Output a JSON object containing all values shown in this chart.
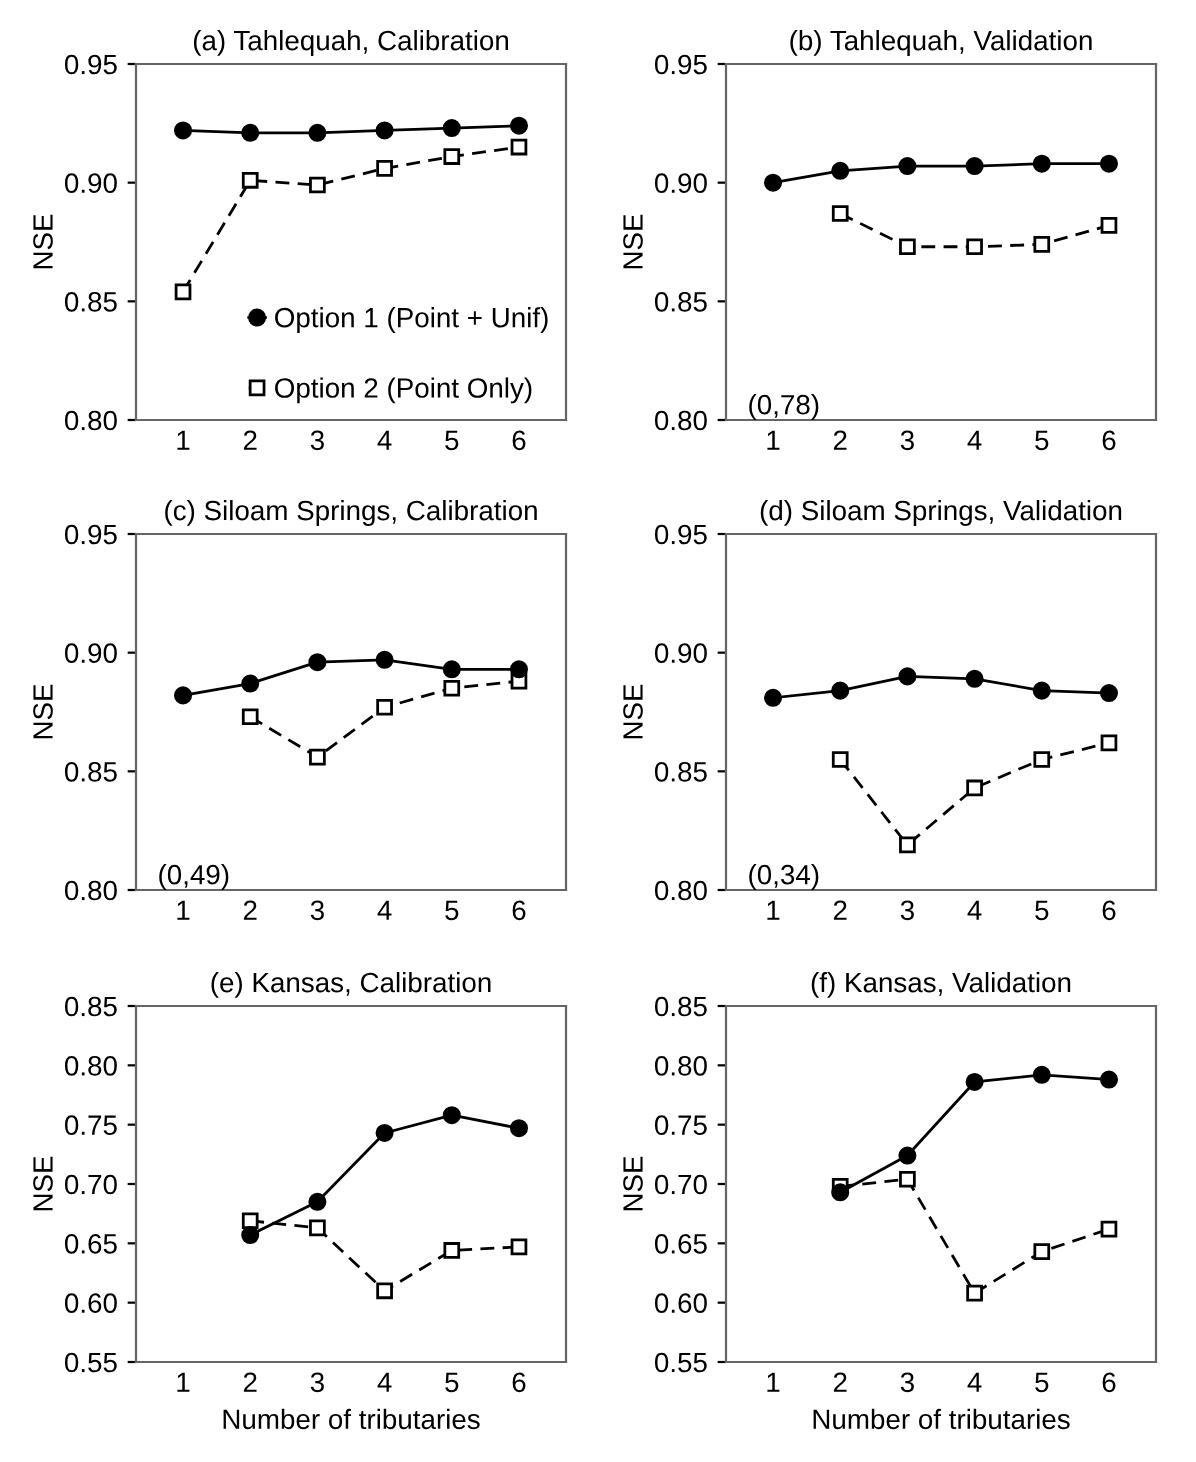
{
  "chart_data": [
    {
      "type": "line",
      "title": "(a) Tahlequah, Calibration",
      "ylabel": "NSE",
      "x": [
        1,
        2,
        3,
        4,
        5,
        6
      ],
      "xlim": [
        0.3,
        6.7
      ],
      "xticks": [
        1,
        2,
        3,
        4,
        5,
        6
      ],
      "ylim": [
        0.8,
        0.95
      ],
      "yticks": [
        {
          "value": 0.8,
          "label": "0.80"
        },
        {
          "value": 0.85,
          "label": "0.85"
        },
        {
          "value": 0.9,
          "label": "0.90"
        },
        {
          "value": 0.95,
          "label": "0.95"
        }
      ],
      "legend": "bottom right",
      "grid": false,
      "series": [
        {
          "name": "Option 1 (Point + Unif)",
          "color": "#000000",
          "marker": "circle",
          "line_style": "solid",
          "values": [
            0.922,
            0.921,
            0.921,
            0.922,
            0.923,
            0.924
          ]
        },
        {
          "name": "Option 2 (Point Only)",
          "color": "#000000",
          "marker": "square",
          "line_style": "dashed",
          "values": [
            0.854,
            0.901,
            0.899,
            0.906,
            0.911,
            0.915
          ]
        }
      ]
    },
    {
      "type": "line",
      "title": "(b) Tahlequah, Validation",
      "ylabel": "NSE",
      "x": [
        1,
        2,
        3,
        4,
        5,
        6
      ],
      "xlim": [
        0.3,
        6.7
      ],
      "xticks": [
        1,
        2,
        3,
        4,
        5,
        6
      ],
      "ylim": [
        0.8,
        0.95
      ],
      "yticks": [
        {
          "value": 0.8,
          "label": "0.80"
        },
        {
          "value": 0.85,
          "label": "0.85"
        },
        {
          "value": 0.9,
          "label": "0.90"
        },
        {
          "value": 0.95,
          "label": "0.95"
        }
      ],
      "grid": false,
      "annotations": [
        "(0,78)"
      ],
      "series": [
        {
          "color": "#000000",
          "marker": "circle",
          "line_style": "solid",
          "values": [
            0.9,
            0.905,
            0.907,
            0.907,
            0.908,
            0.908
          ]
        },
        {
          "color": "#000000",
          "marker": "square",
          "line_style": "dashed",
          "values": [
            null,
            0.887,
            0.873,
            0.873,
            0.874,
            0.882
          ]
        }
      ]
    },
    {
      "type": "line",
      "title": "(c) Siloam Springs, Calibration",
      "ylabel": "NSE",
      "x": [
        1,
        2,
        3,
        4,
        5,
        6
      ],
      "xlim": [
        0.3,
        6.7
      ],
      "xticks": [
        1,
        2,
        3,
        4,
        5,
        6
      ],
      "ylim": [
        0.8,
        0.95
      ],
      "yticks": [
        {
          "value": 0.8,
          "label": "0.80"
        },
        {
          "value": 0.85,
          "label": "0.85"
        },
        {
          "value": 0.9,
          "label": "0.90"
        },
        {
          "value": 0.95,
          "label": "0.95"
        }
      ],
      "grid": false,
      "annotations": [
        "(0,49)"
      ],
      "series": [
        {
          "color": "#000000",
          "marker": "circle",
          "line_style": "solid",
          "values": [
            0.882,
            0.887,
            0.896,
            0.897,
            0.893,
            0.893
          ]
        },
        {
          "color": "#000000",
          "marker": "square",
          "line_style": "dashed",
          "values": [
            null,
            0.873,
            0.856,
            0.877,
            0.885,
            0.888
          ]
        }
      ]
    },
    {
      "type": "line",
      "title": "(d) Siloam Springs, Validation",
      "ylabel": "NSE",
      "x": [
        1,
        2,
        3,
        4,
        5,
        6
      ],
      "xlim": [
        0.3,
        6.7
      ],
      "xticks": [
        1,
        2,
        3,
        4,
        5,
        6
      ],
      "ylim": [
        0.8,
        0.95
      ],
      "yticks": [
        {
          "value": 0.8,
          "label": "0.80"
        },
        {
          "value": 0.85,
          "label": "0.85"
        },
        {
          "value": 0.9,
          "label": "0.90"
        },
        {
          "value": 0.95,
          "label": "0.95"
        }
      ],
      "grid": false,
      "annotations": [
        "(0,34)"
      ],
      "series": [
        {
          "color": "#000000",
          "marker": "circle",
          "line_style": "solid",
          "values": [
            0.881,
            0.884,
            0.89,
            0.889,
            0.884,
            0.883
          ]
        },
        {
          "color": "#000000",
          "marker": "square",
          "line_style": "dashed",
          "values": [
            null,
            0.855,
            0.819,
            0.843,
            0.855,
            0.862
          ]
        }
      ]
    },
    {
      "type": "line",
      "title": "(e) Kansas, Calibration",
      "ylabel": "NSE",
      "xlabel": "Number of tributaries",
      "xlim": [
        0.3,
        6.7
      ],
      "xticks": [
        1,
        2,
        3,
        4,
        5,
        6
      ],
      "ylim": [
        0.55,
        0.85
      ],
      "yticks": [
        {
          "value": 0.55,
          "label": "0.55"
        },
        {
          "value": 0.6,
          "label": "0.60"
        },
        {
          "value": 0.65,
          "label": "0.65"
        },
        {
          "value": 0.7,
          "label": "0.70"
        },
        {
          "value": 0.75,
          "label": "0.75"
        },
        {
          "value": 0.8,
          "label": "0.80"
        },
        {
          "value": 0.85,
          "label": "0.85"
        }
      ],
      "grid": false,
      "series": [
        {
          "color": "#000000",
          "marker": "circle",
          "line_style": "solid",
          "x": [
            2,
            3,
            4,
            5,
            6
          ],
          "values": [
            0.657,
            0.685,
            0.743,
            0.758,
            0.747
          ]
        },
        {
          "color": "#000000",
          "marker": "square",
          "line_style": "dashed",
          "x": [
            2,
            3,
            4,
            5,
            6
          ],
          "values": [
            0.669,
            0.663,
            0.61,
            0.644,
            0.647
          ]
        }
      ]
    },
    {
      "type": "line",
      "title": "(f) Kansas, Validation",
      "ylabel": "NSE",
      "xlabel": "Number of tributaries",
      "xlim": [
        0.3,
        6.7
      ],
      "xticks": [
        1,
        2,
        3,
        4,
        5,
        6
      ],
      "ylim": [
        0.55,
        0.85
      ],
      "yticks": [
        {
          "value": 0.55,
          "label": "0.55"
        },
        {
          "value": 0.6,
          "label": "0.60"
        },
        {
          "value": 0.65,
          "label": "0.65"
        },
        {
          "value": 0.7,
          "label": "0.70"
        },
        {
          "value": 0.75,
          "label": "0.75"
        },
        {
          "value": 0.8,
          "label": "0.80"
        },
        {
          "value": 0.85,
          "label": "0.85"
        }
      ],
      "grid": false,
      "series": [
        {
          "color": "#000000",
          "marker": "circle",
          "line_style": "solid",
          "x": [
            2,
            3,
            4,
            5,
            6
          ],
          "values": [
            0.693,
            0.724,
            0.786,
            0.792,
            0.788
          ]
        },
        {
          "color": "#000000",
          "marker": "square",
          "line_style": "dashed",
          "x": [
            2,
            3,
            4,
            5,
            6
          ],
          "values": [
            0.698,
            0.704,
            0.608,
            0.643,
            0.662
          ]
        }
      ]
    }
  ]
}
